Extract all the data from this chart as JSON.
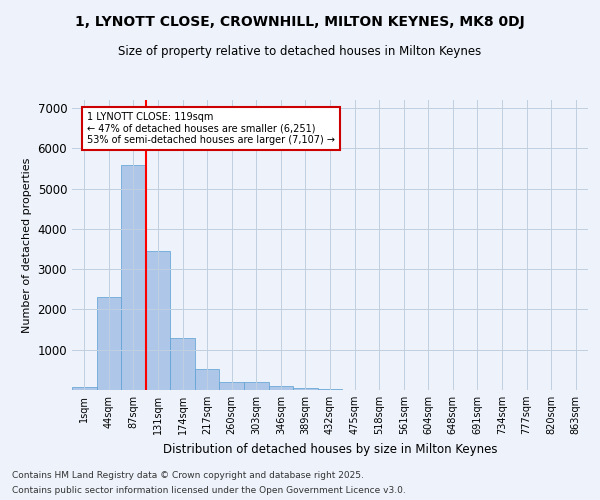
{
  "title": "1, LYNOTT CLOSE, CROWNHILL, MILTON KEYNES, MK8 0DJ",
  "subtitle": "Size of property relative to detached houses in Milton Keynes",
  "xlabel": "Distribution of detached houses by size in Milton Keynes",
  "ylabel": "Number of detached properties",
  "bar_color": "#aec6e8",
  "bar_edge_color": "#5a9fd4",
  "background_color": "#eef3fb",
  "grid_color": "#c0cfe0",
  "categories": [
    "1sqm",
    "44sqm",
    "87sqm",
    "131sqm",
    "174sqm",
    "217sqm",
    "260sqm",
    "303sqm",
    "346sqm",
    "389sqm",
    "432sqm",
    "475sqm",
    "518sqm",
    "561sqm",
    "604sqm",
    "648sqm",
    "691sqm",
    "734sqm",
    "777sqm",
    "820sqm",
    "863sqm"
  ],
  "values": [
    80,
    2300,
    5580,
    3450,
    1300,
    510,
    200,
    190,
    100,
    60,
    30,
    0,
    0,
    0,
    0,
    0,
    0,
    0,
    0,
    0,
    0
  ],
  "ylim": [
    0,
    7200
  ],
  "yticks": [
    0,
    1000,
    2000,
    3000,
    4000,
    5000,
    6000,
    7000
  ],
  "property_label": "1 LYNOTT CLOSE: 119sqm",
  "pct_smaller": 47,
  "num_smaller": 6251,
  "pct_larger": 53,
  "num_larger": 7107,
  "vline_x_index": 2.5,
  "annotation_box_color": "#ffffff",
  "annotation_box_edge": "#cc0000",
  "footnote_line1": "Contains HM Land Registry data © Crown copyright and database right 2025.",
  "footnote_line2": "Contains public sector information licensed under the Open Government Licence v3.0."
}
